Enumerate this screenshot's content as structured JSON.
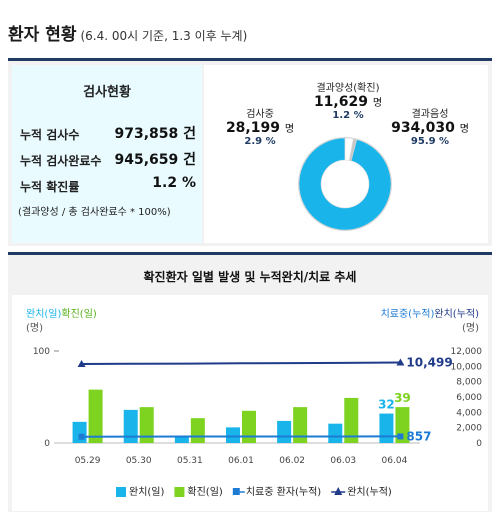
{
  "header": {
    "title": "환자 현황",
    "subtitle": "(6.4. 00시 기준, 1.3 이후 누계)"
  },
  "test_summary": {
    "title": "검사현황",
    "rows": [
      {
        "label": "누적 검사수",
        "value": "973,858 건"
      },
      {
        "label": "누적 검사완료수",
        "value": "945,659 건"
      },
      {
        "label": "누적 확진률",
        "value": "1.2 %"
      }
    ],
    "note": "(결과양성 / 총 검사완료수 * 100%)"
  },
  "donut": {
    "unit": "명",
    "segments": [
      {
        "name": "결과음성",
        "count": "934,030",
        "pct": "95.9 %",
        "value": 934030,
        "color": "#18b4ea"
      },
      {
        "name": "검사중",
        "count": "28,199",
        "pct": "2.9 %",
        "value": 28199,
        "color": "#ffffff"
      },
      {
        "name": "결과양성(확진)",
        "count": "11,629",
        "pct": "1.2 %",
        "value": 11629,
        "color": "#c7c7c7"
      }
    ]
  },
  "chart_title": "확진환자 일별 발생 및 누적완치/치료 추세",
  "chart_data": {
    "type": "bar",
    "categories": [
      "05.29",
      "05.30",
      "05.31",
      "06.01",
      "06.02",
      "06.03",
      "06.04"
    ],
    "left_axis": {
      "label_a": "완치(일)",
      "label_b": "확진(일)",
      "unit": "(명)",
      "ticks": [
        0,
        100
      ],
      "ylim": [
        0,
        100
      ]
    },
    "right_axis": {
      "label_a": "치료중(누적)",
      "label_b": "완치(누적)",
      "unit": "(명)",
      "ticks": [
        "0",
        "2,000",
        "4,000",
        "6,000",
        "8,000",
        "10,000",
        "12,000"
      ],
      "ylim": [
        0,
        12000
      ]
    },
    "series": [
      {
        "name": "완치(일)",
        "type": "bar",
        "axis": "left",
        "color": "#18b4ea",
        "values": [
          23,
          36,
          7,
          17,
          24,
          21,
          32
        ]
      },
      {
        "name": "확진(일)",
        "type": "bar",
        "axis": "left",
        "color": "#7ed321",
        "values": [
          58,
          39,
          27,
          35,
          39,
          49,
          39
        ]
      },
      {
        "name": "치료중 환자(누적)",
        "type": "line",
        "axis": "right",
        "color": "#1d7bd4",
        "values": [
          820,
          830,
          840,
          845,
          850,
          855,
          857
        ]
      },
      {
        "name": "완치(누적)",
        "type": "line",
        "axis": "right",
        "color": "#1f3b8a",
        "values": [
          10310,
          10340,
          10360,
          10400,
          10420,
          10450,
          10499
        ]
      }
    ],
    "annotations": [
      {
        "text": "32",
        "series": "완치(일)",
        "index": 6,
        "color": "#18b4ea"
      },
      {
        "text": "39",
        "series": "확진(일)",
        "index": 6,
        "color": "#7ed321"
      },
      {
        "text": "10,499",
        "series": "완치(누적)",
        "index": 6,
        "color": "#1f3b8a"
      },
      {
        "text": "857",
        "series": "치료중 환자(누적)",
        "index": 6,
        "color": "#1d7bd4"
      }
    ],
    "legend": [
      {
        "label": "완치(일)",
        "marker": "box",
        "color": "#18b4ea"
      },
      {
        "label": "확진(일)",
        "marker": "box",
        "color": "#7ed321"
      },
      {
        "label": "치료중 환자(누적)",
        "marker": "line",
        "color": "#1d7bd4"
      },
      {
        "label": "완치(누적)",
        "marker": "triangle",
        "color": "#1f3b8a"
      }
    ],
    "legend_position": "bottom",
    "grid": false
  }
}
